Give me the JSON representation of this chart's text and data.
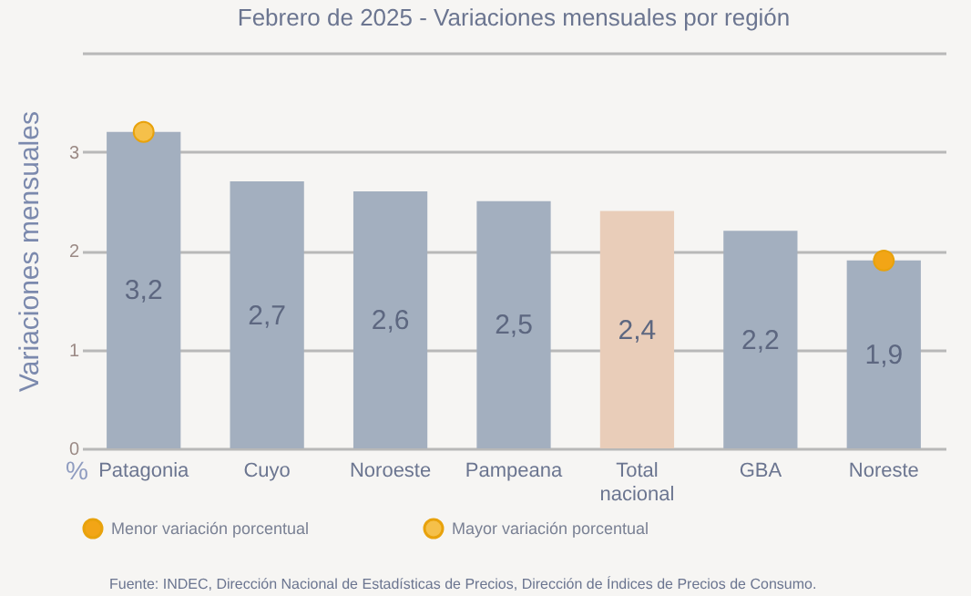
{
  "chart_data": {
    "type": "bar",
    "title": "Febrero de 2025 - Variaciones mensuales por región",
    "ylabel": "Variaciones mensuales",
    "categories": [
      "Patagonia",
      "Cuyo",
      "Noroeste",
      "Pampeana",
      "Total nacional",
      "GBA",
      "Noreste"
    ],
    "values": [
      3.2,
      2.7,
      2.6,
      2.5,
      2.4,
      2.2,
      1.9
    ],
    "colors": [
      "#a3afbf",
      "#a3afbf",
      "#a3afbf",
      "#a3afbf",
      "#e9cdb9",
      "#a3afbf",
      "#a3afbf"
    ],
    "value_labels": [
      "3,2",
      "2,7",
      "2,6",
      "2,5",
      "2,4",
      "2,2",
      "1,9"
    ],
    "series": [
      {
        "name": "Menor variación porcentual",
        "type": "scatter",
        "color": "#f2a516",
        "x": [
          "Noreste"
        ],
        "values": [
          1.9
        ]
      },
      {
        "name": "Mayor variación porcentual",
        "type": "scatter",
        "color": "#f5c04a",
        "x": [
          "Patagonia"
        ],
        "values": [
          3.2
        ]
      }
    ],
    "ylim": [
      0,
      4
    ],
    "yticks": [
      0,
      1,
      2,
      3,
      {
        "value": 4,
        "label": null
      }
    ],
    "grid": "y",
    "legend": "bottom",
    "marker": "circle",
    "annotations": [
      "%",
      "Fuente: INDEC, Dirección Nacional de Estadísticas de Precios, Dirección de Índices de Precios de Consumo."
    ]
  }
}
